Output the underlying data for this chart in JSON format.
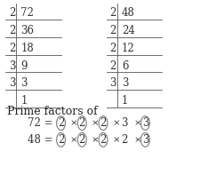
{
  "bg_color": "#ffffff",
  "text_color": "#333333",
  "factor_tree_72": [
    [
      "2",
      "72"
    ],
    [
      "2",
      "36"
    ],
    [
      "2",
      "18"
    ],
    [
      "3",
      "9"
    ],
    [
      "3",
      "3"
    ],
    [
      "",
      "1"
    ]
  ],
  "factor_tree_48": [
    [
      "2",
      "48"
    ],
    [
      "2",
      "24"
    ],
    [
      "2",
      "12"
    ],
    [
      "2",
      "6"
    ],
    [
      "3",
      "3"
    ],
    [
      "",
      "1"
    ]
  ],
  "prime_label": "Prime factors of",
  "factors_72": [
    "2",
    "x",
    "2",
    "x",
    "2",
    "x",
    "3",
    "x",
    "3"
  ],
  "factors_48": [
    "2",
    "x",
    "2",
    "x",
    "2",
    "x",
    "2",
    "x",
    "3"
  ],
  "circled_72": [
    0,
    2,
    4,
    8
  ],
  "circled_48": [
    0,
    2,
    4,
    8
  ],
  "font_size": 8.5,
  "prime_font_size": 9
}
